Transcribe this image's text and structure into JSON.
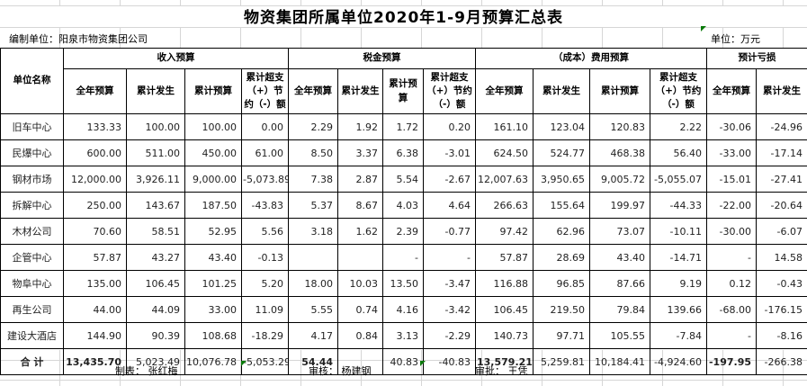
{
  "title": "物资集团所属单位2020年1-9月预算汇总表",
  "meta": {
    "prepared_by": "编制单位：阳泉市物资集团公司",
    "unit": "单位：万元"
  },
  "table": {
    "corner_header": "单位名称",
    "groups": [
      {
        "label": "收入预算",
        "cols": [
          "全年预算",
          "累计发生",
          "累计预算",
          "累计超支（+）节约（-）额"
        ]
      },
      {
        "label": "税金预算",
        "cols": [
          "全年预算",
          "累计发生",
          "累计预算",
          "累计超支（+）节约（-）额"
        ]
      },
      {
        "label": "（成本）费用预算",
        "cols": [
          "全年预算",
          "累计发生",
          "累计预算",
          "累计超支（+）节约（-）额"
        ]
      },
      {
        "label": "预计亏损",
        "cols": [
          "全年预算",
          "累计发生"
        ]
      }
    ],
    "rows": [
      {
        "name": "旧车中心",
        "values": [
          "133.33",
          "100.00",
          "100.00",
          "0.00",
          "2.29",
          "1.92",
          "1.72",
          "0.20",
          "161.10",
          "123.04",
          "120.83",
          "2.22",
          "-30.06",
          "-24.96"
        ]
      },
      {
        "name": "民爆中心",
        "values": [
          "600.00",
          "511.00",
          "450.00",
          "61.00",
          "8.50",
          "3.37",
          "6.38",
          "-3.01",
          "624.50",
          "524.77",
          "468.38",
          "56.40",
          "-33.00",
          "-17.14"
        ]
      },
      {
        "name": "钢材市场",
        "values": [
          "12,000.00",
          "3,926.11",
          "9,000.00",
          "-5,073.89",
          "7.38",
          "2.87",
          "5.54",
          "-2.67",
          "12,007.63",
          "3,950.65",
          "9,005.72",
          "-5,055.07",
          "-15.01",
          "-27.41"
        ]
      },
      {
        "name": "拆解中心",
        "values": [
          "250.00",
          "143.67",
          "187.50",
          "-43.83",
          "5.37",
          "8.67",
          "4.03",
          "4.64",
          "266.63",
          "155.64",
          "199.97",
          "-44.33",
          "-22.00",
          "-20.64"
        ]
      },
      {
        "name": "木材公司",
        "values": [
          "70.60",
          "58.51",
          "52.95",
          "5.56",
          "3.18",
          "1.62",
          "2.39",
          "-0.77",
          "97.42",
          "62.96",
          "73.07",
          "-10.11",
          "-30.00",
          "-6.07"
        ]
      },
      {
        "name": "企管中心",
        "values": [
          "57.87",
          "43.27",
          "43.40",
          "-0.13",
          "",
          "",
          "-",
          "-",
          "57.87",
          "28.69",
          "43.40",
          "-14.71",
          "-",
          "14.58"
        ]
      },
      {
        "name": "物阜中心",
        "values": [
          "135.00",
          "106.45",
          "101.25",
          "5.20",
          "18.00",
          "10.03",
          "13.50",
          "-3.47",
          "116.88",
          "96.85",
          "87.66",
          "9.19",
          "0.12",
          "-0.43"
        ]
      },
      {
        "name": "再生公司",
        "values": [
          "44.00",
          "44.09",
          "33.00",
          "11.09",
          "5.55",
          "0.74",
          "4.16",
          "-3.42",
          "106.45",
          "219.50",
          "79.84",
          "139.66",
          "-68.00",
          "-176.15"
        ]
      },
      {
        "name": "建设大酒店",
        "values": [
          "144.90",
          "90.39",
          "108.68",
          "-18.29",
          "4.17",
          "0.84",
          "3.13",
          "-2.29",
          "140.73",
          "97.71",
          "105.55",
          "-7.84",
          "-",
          "-8.16"
        ],
        "red": [
          12
        ]
      },
      {
        "name": "合  计",
        "values": [
          "13,435.70",
          "5,023.49",
          "10,076.78",
          "-5,053.29",
          "54.44",
          "",
          "40.83",
          "-40.83",
          "13,579.21",
          "5,259.81",
          "10,184.41",
          "-4,924.60",
          "-197.95",
          "-266.38"
        ],
        "total": true
      }
    ]
  },
  "footer": {
    "maker": "制表：  张红梅",
    "reviewer": "审核：  杨建钢",
    "approver": "审批：  王凭"
  },
  "colors": {
    "accent_red": "#e00000",
    "marker_green": "#0a7a0a",
    "grid_gray": "#d6d6d6"
  }
}
